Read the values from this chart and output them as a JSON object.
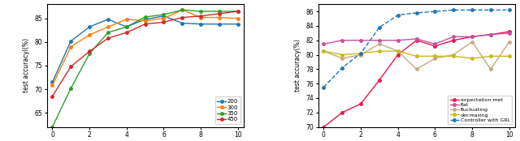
{
  "left": {
    "x": [
      0,
      1,
      2,
      3,
      4,
      5,
      6,
      7,
      8,
      9,
      10
    ],
    "series": {
      "200": [
        71.5,
        80.2,
        83.2,
        84.8,
        83.2,
        84.8,
        85.5,
        84.0,
        83.8,
        83.8,
        83.8
      ],
      "300": [
        70.8,
        79.0,
        81.5,
        83.2,
        84.8,
        84.5,
        85.0,
        86.8,
        85.2,
        85.2,
        85.0
      ],
      "350": [
        62.0,
        70.2,
        77.5,
        82.0,
        83.2,
        85.3,
        85.8,
        86.8,
        86.5,
        86.5,
        86.5
      ],
      "450": [
        68.5,
        74.8,
        78.0,
        80.8,
        82.0,
        83.8,
        84.2,
        85.2,
        85.5,
        86.0,
        86.5
      ]
    },
    "colors": {
      "200": "#1f77b4",
      "300": "#ff7f0e",
      "350": "#2ca02c",
      "450": "#d62728"
    },
    "ylabel": "test accuracyl(%)",
    "ylim": [
      62,
      88
    ],
    "yticks": [
      65,
      70,
      75,
      80,
      85
    ]
  },
  "right": {
    "x": [
      0,
      1,
      2,
      3,
      4,
      5,
      6,
      7,
      8,
      9,
      10
    ],
    "series": {
      "expectation met": [
        70.0,
        72.0,
        73.2,
        76.5,
        80.0,
        82.0,
        81.2,
        82.0,
        82.5,
        82.8,
        83.2
      ],
      "flat": [
        81.5,
        82.0,
        82.0,
        82.0,
        82.0,
        82.2,
        81.5,
        82.5,
        82.5,
        82.8,
        83.0
      ],
      "fluctuating": [
        80.5,
        79.5,
        80.0,
        81.5,
        80.5,
        78.0,
        79.5,
        80.0,
        81.8,
        78.0,
        81.8
      ],
      "decreasing": [
        80.5,
        80.0,
        80.2,
        80.5,
        80.5,
        79.8,
        79.8,
        79.8,
        79.5,
        79.8,
        79.8
      ],
      "Controller with GRL": [
        75.5,
        78.2,
        80.2,
        83.8,
        85.5,
        85.8,
        86.0,
        86.2,
        86.2,
        86.2,
        86.2
      ]
    },
    "colors": {
      "expectation met": "#e8184a",
      "flat": "#c850a0",
      "fluctuating": "#c8a882",
      "decreasing": "#c8b820",
      "Controller with GRL": "#1f77b4"
    },
    "ylabel": "test accuracy(%)",
    "ylim": [
      70,
      87
    ],
    "yticks": [
      70,
      72,
      74,
      76,
      78,
      80,
      82,
      84,
      86
    ]
  }
}
